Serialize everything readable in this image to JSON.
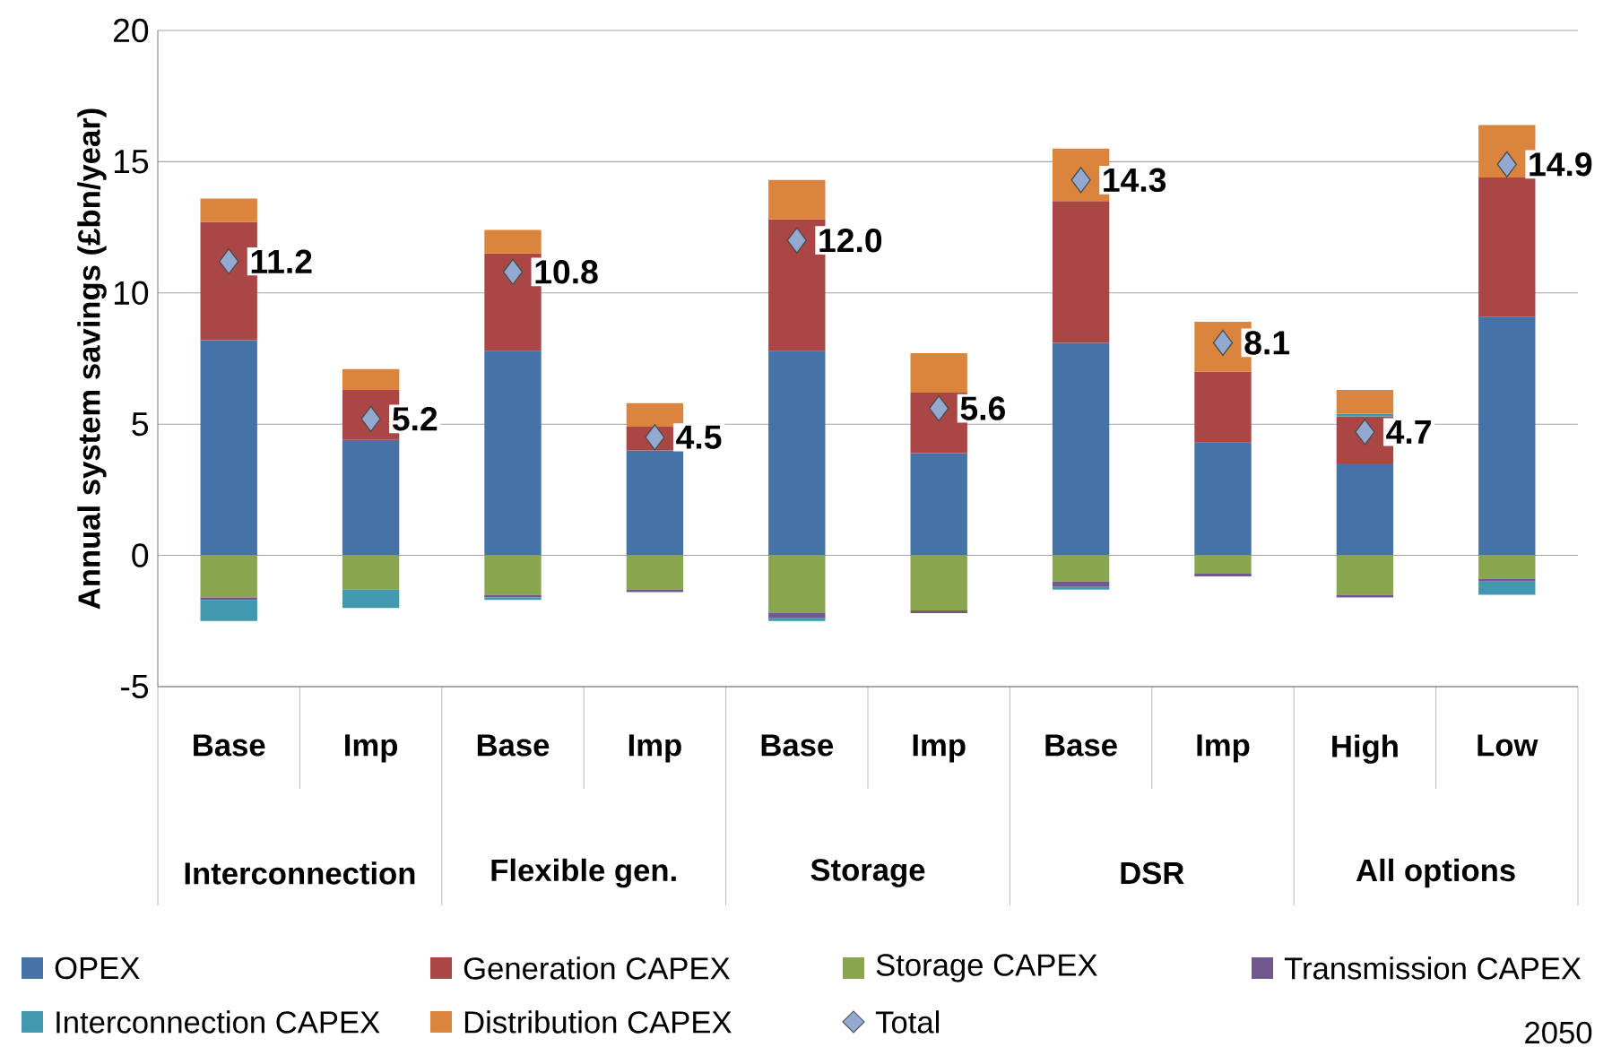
{
  "chart_data": {
    "type": "bar",
    "stacked": true,
    "ylabel": "Annual system savings (£bn/year)",
    "categories": [
      "Base",
      "Imp",
      "Base",
      "Imp",
      "Base",
      "Imp",
      "Base",
      "Imp",
      "High",
      "Low"
    ],
    "annotations": [
      "Interconnection",
      "Flexible gen.",
      "Storage",
      "DSR",
      "All options",
      "2050"
    ],
    "ylim": [
      -5,
      20
    ],
    "yticks": [
      -5,
      0,
      5,
      10,
      15,
      20
    ],
    "grid": "y",
    "legend": "bottom",
    "series": [
      {
        "name": "OPEX",
        "color": "#4572a7",
        "values": [
          8.2,
          4.4,
          7.8,
          4.0,
          7.8,
          3.9,
          8.1,
          4.3,
          3.5,
          9.1
        ]
      },
      {
        "name": "Generation CAPEX",
        "color": "#aa4643",
        "values": [
          4.5,
          1.9,
          3.7,
          0.9,
          5.0,
          2.3,
          5.4,
          2.7,
          1.8,
          5.3
        ]
      },
      {
        "name": "Storage CAPEX",
        "color": "#89a54e",
        "values": [
          -1.6,
          -1.3,
          -1.5,
          -1.3,
          -2.2,
          -2.1,
          -1.0,
          -0.7,
          -1.5,
          -0.9
        ]
      },
      {
        "name": "Transmission CAPEX",
        "color": "#71588f",
        "values": [
          -0.1,
          null,
          -0.1,
          -0.1,
          -0.2,
          -0.1,
          -0.2,
          -0.1,
          -0.1,
          -0.1
        ]
      },
      {
        "name": "Interconnection CAPEX",
        "color": "#4198af",
        "values": [
          -0.8,
          -0.7,
          -0.1,
          null,
          -0.1,
          null,
          -0.1,
          null,
          0.1,
          -0.5
        ]
      },
      {
        "name": "Distribution CAPEX",
        "color": "#db843d",
        "values": [
          0.9,
          0.8,
          0.9,
          0.9,
          1.5,
          1.5,
          2.0,
          1.9,
          0.9,
          2.0
        ]
      },
      {
        "name": "Total",
        "type": "scatter",
        "marker": "diamond",
        "color": "#93a9cf",
        "values": [
          11.2,
          5.2,
          10.8,
          4.5,
          12.0,
          5.6,
          14.3,
          8.1,
          4.7,
          14.9
        ],
        "value_labels": [
          "11.2",
          "5.2",
          "10.8",
          "4.5",
          "12.0",
          "5.6",
          "14.3",
          "8.1",
          "4.7",
          "14.9"
        ]
      }
    ]
  }
}
